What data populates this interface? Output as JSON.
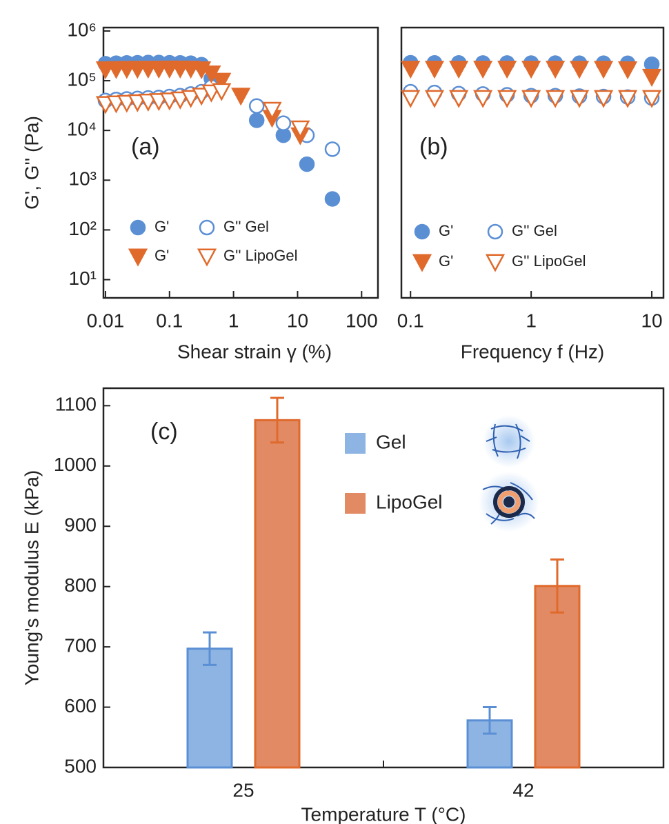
{
  "chart_data": [
    {
      "type": "scatter",
      "annotation": "(a)",
      "x_label": "Shear strain γ (%)",
      "y_label": "G', G'' (Pa)",
      "xlog": true,
      "ylog": true,
      "xlim": [
        0.0093,
        180
      ],
      "ylim": [
        4.3,
        1170000
      ],
      "xticks": [
        0.01,
        0.1,
        1,
        10,
        100
      ],
      "yticks": [
        {
          "value": 1000000,
          "label": "10⁶"
        },
        {
          "value": 100000,
          "label": "10⁵"
        },
        {
          "value": 10000,
          "label": "10⁴"
        },
        {
          "value": 1000,
          "label": "10³"
        },
        {
          "value": 100,
          "label": "10²"
        },
        {
          "value": 10,
          "label": "10¹"
        }
      ],
      "legend": "lower left",
      "series": [
        {
          "name": "G'",
          "color": "#5b8fd4",
          "marker": "circle",
          "filled": true,
          "x": [
            0.01,
            0.0147,
            0.0215,
            0.0316,
            0.0464,
            0.0681,
            0.1,
            0.147,
            0.215,
            0.316,
            0.45,
            2.3,
            6,
            14,
            35
          ],
          "values": [
            220000,
            225000,
            228000,
            230000,
            232000,
            232000,
            230000,
            228000,
            225000,
            210000,
            110000,
            16000,
            8000,
            2100,
            420
          ]
        },
        {
          "name": "G'' Gel",
          "color": "#5b8fd4",
          "marker": "circle",
          "filled": false,
          "x": [
            0.01,
            0.0147,
            0.0215,
            0.0316,
            0.0464,
            0.0681,
            0.1,
            0.147,
            0.215,
            0.316,
            0.45,
            2.3,
            6,
            14,
            35
          ],
          "values": [
            40000,
            42000,
            43000,
            44000,
            45000,
            46000,
            48000,
            50000,
            54000,
            60000,
            75000,
            31000,
            14000,
            8000,
            4200
          ]
        },
        {
          "name": "G'",
          "color": "#e06a2c",
          "marker": "triangle",
          "filled": true,
          "x": [
            0.01,
            0.0147,
            0.0215,
            0.0316,
            0.0464,
            0.0681,
            0.1,
            0.147,
            0.215,
            0.316,
            0.45,
            0.65,
            1.3,
            4,
            11
          ],
          "values": [
            170000,
            172000,
            173000,
            174000,
            175000,
            175000,
            176000,
            176000,
            175000,
            170000,
            140000,
            100000,
            50000,
            18000,
            8000
          ]
        },
        {
          "name": "G'' LipoGel",
          "color": "#e06a2c",
          "marker": "triangle",
          "filled": false,
          "x": [
            0.01,
            0.0147,
            0.0215,
            0.0316,
            0.0464,
            0.0681,
            0.1,
            0.147,
            0.215,
            0.316,
            0.45,
            0.65,
            4,
            11
          ],
          "values": [
            34000,
            35000,
            36000,
            37000,
            38000,
            39000,
            40000,
            42000,
            45000,
            50000,
            58000,
            62000,
            26000,
            11000
          ]
        }
      ]
    },
    {
      "type": "scatter",
      "annotation": "(b)",
      "x_label": "Frequency f (Hz)",
      "xlog": true,
      "ylog": true,
      "xlim": [
        0.084,
        12.5
      ],
      "ylim": [
        4.3,
        1170000
      ],
      "xticks": [
        0.1,
        1,
        10
      ],
      "legend": "lower left",
      "series": [
        {
          "name": "G'",
          "color": "#5b8fd4",
          "marker": "circle",
          "filled": true,
          "x": [
            0.1,
            0.158,
            0.251,
            0.398,
            0.631,
            1,
            1.585,
            2.512,
            3.981,
            6.31,
            10
          ],
          "values": [
            230000,
            228000,
            228000,
            227000,
            227000,
            226000,
            226000,
            225000,
            225000,
            224000,
            215000
          ]
        },
        {
          "name": "G'' Gel",
          "color": "#5b8fd4",
          "marker": "circle",
          "filled": false,
          "x": [
            0.1,
            0.158,
            0.251,
            0.398,
            0.631,
            1,
            1.585,
            2.512,
            3.981,
            6.31,
            10
          ],
          "values": [
            60000,
            58000,
            55000,
            54000,
            52000,
            50000,
            50000,
            49000,
            48000,
            47000,
            45000
          ]
        },
        {
          "name": "G'",
          "color": "#e06a2c",
          "marker": "triangle",
          "filled": true,
          "x": [
            0.1,
            0.158,
            0.251,
            0.398,
            0.631,
            1,
            1.585,
            2.512,
            3.981,
            6.31,
            10
          ],
          "values": [
            175000,
            175000,
            175000,
            175000,
            175000,
            175000,
            175000,
            174000,
            174000,
            170000,
            120000
          ]
        },
        {
          "name": "G'' LipoGel",
          "color": "#e06a2c",
          "marker": "triangle",
          "filled": false,
          "x": [
            0.1,
            0.158,
            0.251,
            0.398,
            0.631,
            1,
            1.585,
            2.512,
            3.981,
            6.31,
            10
          ],
          "values": [
            45000,
            45000,
            45000,
            45000,
            45000,
            45000,
            45000,
            45000,
            45000,
            45000,
            45000
          ]
        }
      ]
    },
    {
      "type": "bar",
      "annotation": "(c)",
      "x_label": "Temperature T (°C)",
      "y_label": "Young's modulus E (kPa)",
      "categories": [
        "25",
        "42"
      ],
      "category_color": "#8b2a1a",
      "ylim": [
        500,
        1129
      ],
      "yticks": [
        500,
        600,
        700,
        800,
        900,
        1000,
        1100
      ],
      "legend": "upper center",
      "series": [
        {
          "name": "Gel",
          "color": "#5b8fd4",
          "fill": "#8db4e2",
          "values": [
            697,
            578
          ],
          "errors": [
            27,
            22
          ]
        },
        {
          "name": "LipoGel",
          "color": "#e06a2c",
          "fill": "#e28a64",
          "values": [
            1076,
            801
          ],
          "errors": [
            37,
            44
          ]
        }
      ]
    }
  ]
}
